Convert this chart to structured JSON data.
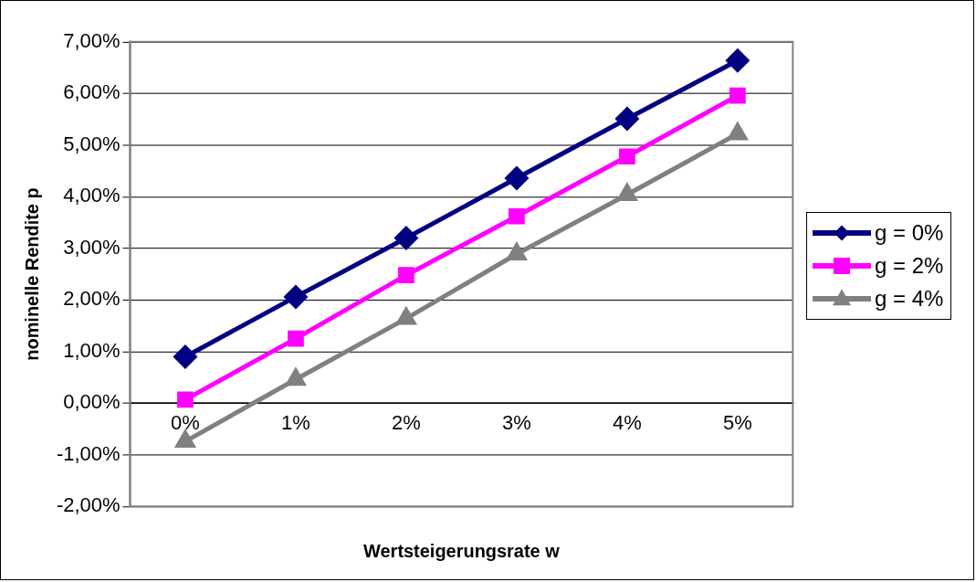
{
  "chart_data": {
    "type": "line",
    "xlabel": "Wertsteigerungsrate w",
    "ylabel": "nominelle Rendite p",
    "categories": [
      "0%",
      "1%",
      "2%",
      "3%",
      "4%",
      "5%"
    ],
    "series": [
      {
        "name": "g = 0%",
        "color": "#000080",
        "marker": "diamond",
        "values": [
          0.9,
          2.06,
          3.2,
          4.36,
          5.51,
          6.64
        ]
      },
      {
        "name": "g = 2%",
        "color": "#ff00ff",
        "marker": "square",
        "values": [
          0.07,
          1.25,
          2.48,
          3.62,
          4.78,
          5.96
        ]
      },
      {
        "name": "g = 4%",
        "color": "#808080",
        "marker": "triangle",
        "values": [
          -0.74,
          0.46,
          1.64,
          2.89,
          4.04,
          5.22
        ]
      }
    ],
    "ylim": [
      -2,
      7
    ],
    "yticks": [
      {
        "value": -2,
        "label": "-2,00%"
      },
      {
        "value": -1,
        "label": "-1,00%"
      },
      {
        "value": 0,
        "label": "0,00%"
      },
      {
        "value": 1,
        "label": "1,00%"
      },
      {
        "value": 2,
        "label": "2,00%"
      },
      {
        "value": 3,
        "label": "3,00%"
      },
      {
        "value": 4,
        "label": "4,00%"
      },
      {
        "value": 5,
        "label": "5,00%"
      },
      {
        "value": 6,
        "label": "6,00%"
      },
      {
        "value": 7,
        "label": "7,00%"
      }
    ],
    "grid": "y",
    "legend": "right",
    "line_style": "solid"
  }
}
